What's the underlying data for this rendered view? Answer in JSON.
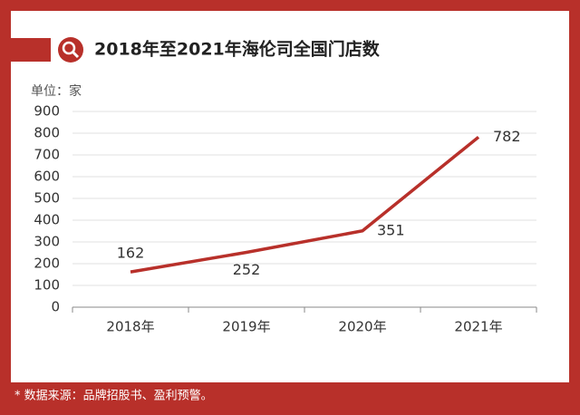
{
  "chart_data": {
    "type": "line",
    "title": "2018年至2021年海伦司全国门店数",
    "unit_label": "单位：家",
    "footnote": "* 数据来源：品牌招股书、盈利预警。",
    "categories": [
      "2018年",
      "2019年",
      "2020年",
      "2021年"
    ],
    "values": [
      162,
      252,
      351,
      782
    ],
    "color": "#b8302a",
    "ylim": [
      0,
      900
    ],
    "yticks": [
      0,
      100,
      200,
      300,
      400,
      500,
      600,
      700,
      800,
      900
    ],
    "grid": true
  }
}
